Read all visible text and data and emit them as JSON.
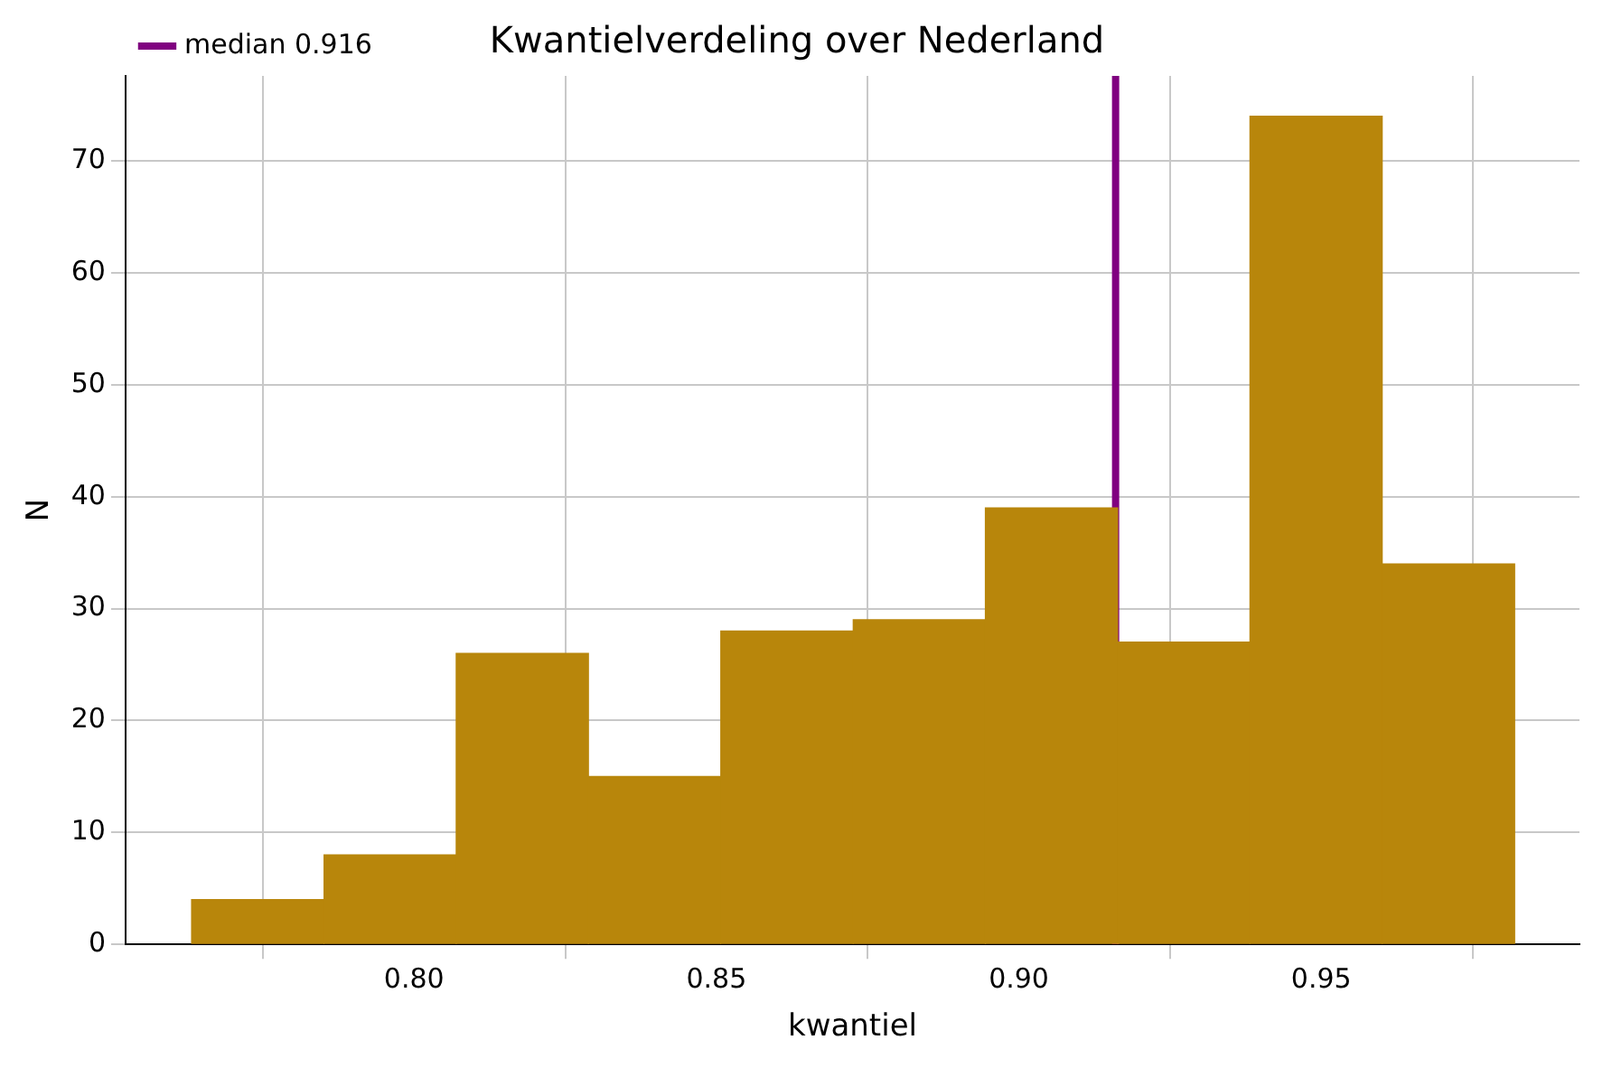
{
  "chart_data": {
    "type": "histogram",
    "title": "Kwantielverdeling over Nederland",
    "xlabel": "kwantiel",
    "ylabel": "N",
    "bins": [
      0.7632,
      0.7851,
      0.807,
      0.8288,
      0.8507,
      0.8726,
      0.8945,
      0.9163,
      0.9382,
      0.9601,
      0.982
    ],
    "values": [
      4,
      8,
      26,
      15,
      28,
      29,
      39,
      27,
      74,
      34
    ],
    "color": "#b8860b",
    "xlim": [
      0.7523,
      0.9927
    ],
    "ylim": [
      0,
      77.6
    ],
    "xticks": [
      {
        "value": 0.8,
        "label": "0.80"
      },
      {
        "value": 0.85,
        "label": "0.85"
      },
      {
        "value": 0.9,
        "label": "0.90"
      },
      {
        "value": 0.95,
        "label": "0.95"
      }
    ],
    "yticks": [
      0,
      10,
      20,
      30,
      40,
      50,
      60,
      70
    ],
    "ref_lines": [
      {
        "axis": "x",
        "value": 0.916,
        "label": "median 0.916",
        "color": "#800080"
      }
    ],
    "grid": true,
    "legend": "top left"
  }
}
